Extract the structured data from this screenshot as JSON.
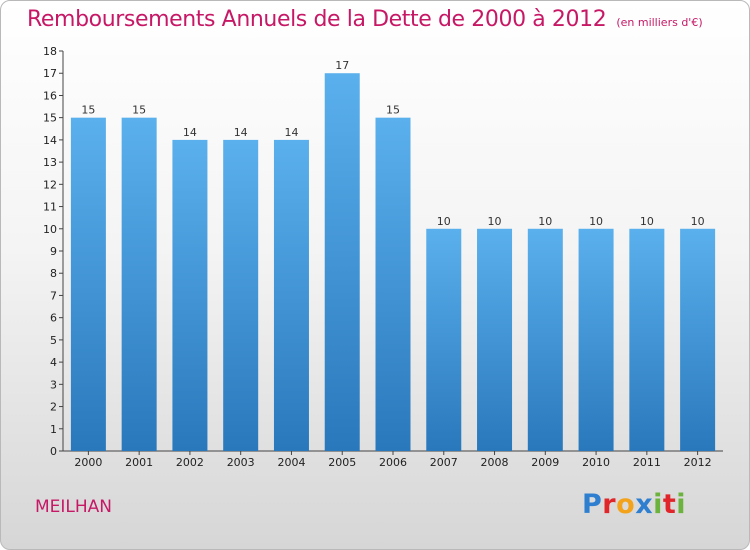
{
  "title": "Remboursements Annuels de la Dette de 2000 à 2012",
  "subtitle": "(en milliers d'€)",
  "commune": "MEILHAN",
  "logo": {
    "letters": [
      "P",
      "r",
      "o",
      "x",
      "i",
      "t",
      "i"
    ],
    "colors": [
      "#2f7fd1",
      "#e0262a",
      "#f2a31b",
      "#2f7fd1",
      "#6cb33e",
      "#e0262a",
      "#6cb33e"
    ]
  },
  "chart_data": {
    "type": "bar",
    "categories": [
      "2000",
      "2001",
      "2002",
      "2003",
      "2004",
      "2005",
      "2006",
      "2007",
      "2008",
      "2009",
      "2010",
      "2011",
      "2012"
    ],
    "values": [
      15,
      15,
      14,
      14,
      14,
      17,
      15,
      10,
      10,
      10,
      10,
      10,
      10
    ],
    "ylim": [
      0,
      18
    ],
    "yticks": [
      0,
      1,
      2,
      3,
      4,
      5,
      6,
      7,
      8,
      9,
      10,
      11,
      12,
      13,
      14,
      15,
      16,
      17,
      18
    ],
    "grid": false,
    "bar_color_top": "#5ab0ec",
    "bar_color_bottom": "#2a78bc"
  }
}
